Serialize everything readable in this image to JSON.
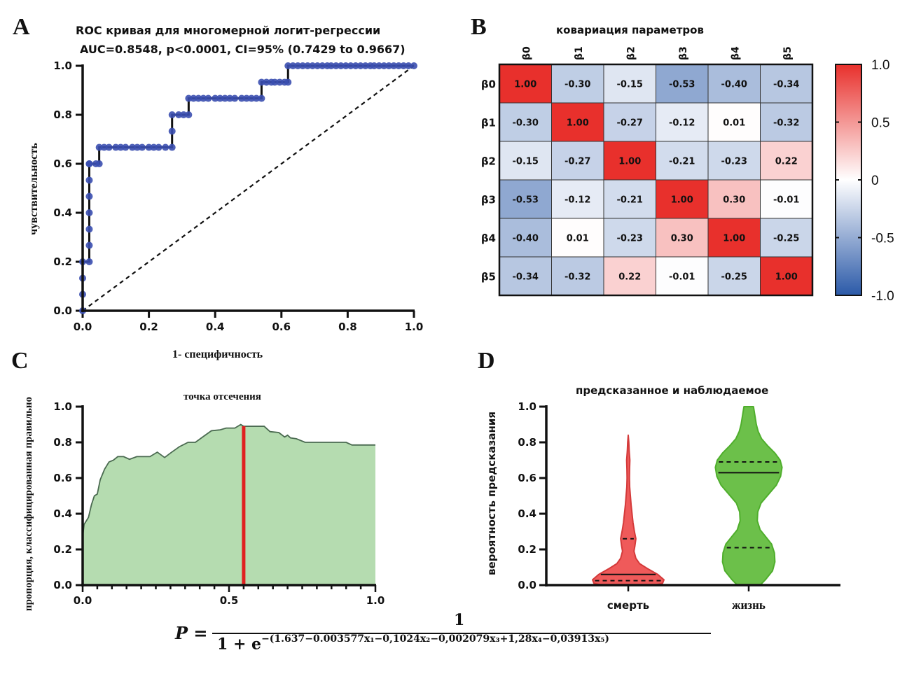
{
  "panels": {
    "a": {
      "letter": "A"
    },
    "b": {
      "letter": "B"
    },
    "c": {
      "letter": "C"
    },
    "d": {
      "letter": "D"
    }
  },
  "formula": {
    "lhs": "P =",
    "numerator": "1",
    "denominator_base": "1 + e",
    "exponent": "−(1.637−0.003577x₁−0,1024x₂−0,002079x₃+1,28x₄−0,03913x₅)"
  },
  "colors": {
    "roc_points": "#3b4fb0",
    "line": "#111111",
    "heat_pos": "#e8302c",
    "heat_neg": "#2b5aa8",
    "area_fill": "#b5dcb0",
    "area_stroke": "#4a6a50",
    "cutoff": "#e02020",
    "violin_death": "#ef5a5a",
    "violin_death_stroke": "#d43a3a",
    "violin_life": "#6cc04a",
    "violin_life_stroke": "#4fae2c"
  },
  "chart_data": [
    {
      "id": "roc",
      "type": "line",
      "title": "ROC кривая для многомерной логит-регрессии",
      "subtitle": "AUC=0.8548, p<0.0001, CI=95% (0.7429 to 0.9667)",
      "xlabel": "1- специфичность",
      "ylabel": "чувствительность",
      "xlim": [
        0,
        1
      ],
      "ylim": [
        0,
        1
      ],
      "xticks": [
        "0.0",
        "0.2",
        "0.4",
        "0.6",
        "0.8",
        "1.0"
      ],
      "yticks": [
        "0.0",
        "0.2",
        "0.4",
        "0.6",
        "0.8",
        "1.0"
      ],
      "series": [
        {
          "name": "ROC",
          "x": [
            0,
            0,
            0,
            0,
            0.02,
            0.02,
            0.02,
            0.02,
            0.02,
            0.02,
            0.02,
            0.02,
            0.04,
            0.05,
            0.05,
            0.1,
            0.15,
            0.2,
            0.25,
            0.27,
            0.27,
            0.27,
            0.29,
            0.32,
            0.32,
            0.4,
            0.48,
            0.54,
            0.54,
            0.58,
            0.62,
            0.62,
            0.75,
            0.88,
            1.0
          ],
          "y": [
            0,
            0.067,
            0.133,
            0.2,
            0.2,
            0.267,
            0.333,
            0.4,
            0.467,
            0.533,
            0.6,
            0.6,
            0.6,
            0.6,
            0.667,
            0.667,
            0.667,
            0.667,
            0.667,
            0.667,
            0.733,
            0.8,
            0.8,
            0.8,
            0.867,
            0.867,
            0.867,
            0.867,
            0.933,
            0.933,
            0.933,
            1.0,
            1.0,
            1.0,
            1.0
          ]
        },
        {
          "name": "reference",
          "x": [
            0,
            1
          ],
          "y": [
            0,
            1
          ],
          "style": "dashed"
        }
      ]
    },
    {
      "id": "covariance",
      "type": "heatmap",
      "title": "ковариация параметров",
      "row_labels": [
        "β0",
        "β1",
        "β2",
        "β3",
        "β4",
        "β5"
      ],
      "col_labels": [
        "β0",
        "β1",
        "β2",
        "β3",
        "β4",
        "β5"
      ],
      "values": [
        [
          1.0,
          -0.3,
          -0.15,
          -0.53,
          -0.4,
          -0.34
        ],
        [
          -0.3,
          1.0,
          -0.27,
          -0.12,
          0.01,
          -0.32
        ],
        [
          -0.15,
          -0.27,
          1.0,
          -0.21,
          -0.23,
          0.22
        ],
        [
          -0.53,
          -0.12,
          -0.21,
          1.0,
          0.3,
          -0.01
        ],
        [
          -0.4,
          0.01,
          -0.23,
          0.3,
          1.0,
          -0.25
        ],
        [
          -0.34,
          -0.32,
          0.22,
          -0.01,
          -0.25,
          1.0
        ]
      ],
      "cell_labels": [
        [
          "1.00",
          "-0.30",
          "-0.15",
          "-0.53",
          "-0.40",
          "-0.34"
        ],
        [
          "-0.30",
          "1.00",
          "-0.27",
          "-0.12",
          "0.01",
          "-0.32"
        ],
        [
          "-0.15",
          "-0.27",
          "1.00",
          "-0.21",
          "-0.23",
          "0.22"
        ],
        [
          "-0.53",
          "-0.12",
          "-0.21",
          "1.00",
          "0.30",
          "-0.01"
        ],
        [
          "-0.40",
          "0.01",
          "-0.23",
          "0.30",
          "1.00",
          "-0.25"
        ],
        [
          "-0.34",
          "-0.32",
          "0.22",
          "-0.01",
          "-0.25",
          "1.00"
        ]
      ],
      "colorbar": {
        "range": [
          -1.0,
          1.0
        ],
        "ticks": [
          "1.0",
          "0.5",
          "0",
          "-0.5",
          "-1.0"
        ],
        "tick_values": [
          1.0,
          0.5,
          0,
          -0.5,
          -1.0
        ],
        "placement": "right"
      }
    },
    {
      "id": "cutoff",
      "type": "area",
      "title": "точка отсечения",
      "xlabel": "",
      "ylabel": "пропорция, классифицированная правильно",
      "xlim": [
        0,
        1
      ],
      "ylim": [
        0,
        1
      ],
      "xticks": [
        "0.0",
        "0.5",
        "1.0"
      ],
      "xtick_values": [
        0,
        0.5,
        1.0
      ],
      "yticks": [
        "0.0",
        "0.2",
        "0.4",
        "0.6",
        "0.8",
        "1.0"
      ],
      "x": [
        0.0,
        0.005,
        0.02,
        0.03,
        0.04,
        0.05,
        0.06,
        0.075,
        0.09,
        0.105,
        0.12,
        0.14,
        0.16,
        0.185,
        0.21,
        0.23,
        0.255,
        0.28,
        0.3,
        0.33,
        0.36,
        0.385,
        0.41,
        0.44,
        0.47,
        0.49,
        0.52,
        0.54,
        0.55,
        0.6,
        0.62,
        0.64,
        0.67,
        0.69,
        0.7,
        0.71,
        0.73,
        0.76,
        0.9,
        0.92,
        1.0
      ],
      "y": [
        0.27,
        0.34,
        0.38,
        0.45,
        0.5,
        0.51,
        0.59,
        0.65,
        0.69,
        0.7,
        0.72,
        0.72,
        0.705,
        0.72,
        0.72,
        0.72,
        0.745,
        0.715,
        0.74,
        0.775,
        0.8,
        0.8,
        0.83,
        0.865,
        0.87,
        0.88,
        0.88,
        0.9,
        0.89,
        0.89,
        0.89,
        0.86,
        0.855,
        0.83,
        0.84,
        0.825,
        0.82,
        0.8,
        0.8,
        0.785,
        0.785
      ],
      "cutoff_x": 0.55
    },
    {
      "id": "violin",
      "type": "violin",
      "title": "предсказанное и наблюдаемое",
      "xlabel": "",
      "ylabel": "вероятность предсказания",
      "ylim": [
        0,
        1
      ],
      "yticks": [
        "0.0",
        "0.2",
        "0.4",
        "0.6",
        "0.8",
        "1.0"
      ],
      "categories": [
        "смерть",
        "жизнь"
      ],
      "series": [
        {
          "name": "смерть",
          "median": 0.06,
          "q1": 0.025,
          "q3": 0.26,
          "min": 0.0,
          "max": 0.84,
          "profile_y": [
            0.0,
            0.01,
            0.03,
            0.06,
            0.09,
            0.12,
            0.15,
            0.19,
            0.22,
            0.26,
            0.3,
            0.35,
            0.4,
            0.45,
            0.5,
            0.55,
            0.6,
            0.65,
            0.7,
            0.75,
            0.8,
            0.84
          ],
          "profile_w": [
            0.55,
            0.72,
            0.75,
            0.62,
            0.42,
            0.24,
            0.16,
            0.12,
            0.14,
            0.16,
            0.13,
            0.1,
            0.08,
            0.06,
            0.045,
            0.03,
            0.025,
            0.028,
            0.034,
            0.02,
            0.012,
            0.0
          ]
        },
        {
          "name": "жизнь",
          "median": 0.63,
          "q1": 0.21,
          "q3": 0.69,
          "min": 0.0,
          "max": 1.0,
          "profile_y": [
            0.0,
            0.03,
            0.08,
            0.13,
            0.18,
            0.23,
            0.27,
            0.31,
            0.36,
            0.41,
            0.46,
            0.51,
            0.56,
            0.61,
            0.66,
            0.7,
            0.74,
            0.78,
            0.82,
            0.86,
            0.9,
            0.95,
            1.0
          ],
          "profile_w": [
            0.24,
            0.35,
            0.5,
            0.55,
            0.54,
            0.48,
            0.36,
            0.24,
            0.18,
            0.19,
            0.26,
            0.42,
            0.58,
            0.67,
            0.7,
            0.66,
            0.55,
            0.4,
            0.27,
            0.2,
            0.16,
            0.13,
            0.1
          ]
        }
      ]
    }
  ]
}
